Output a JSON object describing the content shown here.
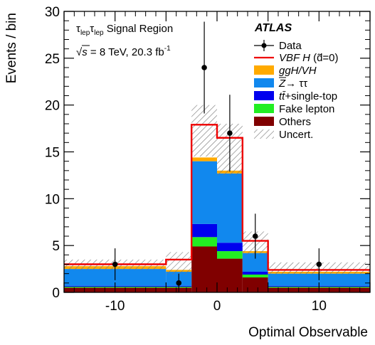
{
  "chart_data": {
    "type": "bar",
    "stacked": true,
    "xlabel": "Optimal Observable",
    "ylabel": "Events / bin",
    "xlim": [
      -15,
      15
    ],
    "ylim": [
      0,
      30
    ],
    "xticks": [
      -10,
      0,
      10
    ],
    "xtick_labels": [
      "-10",
      "0",
      "10"
    ],
    "yticks": [
      0,
      5,
      10,
      15,
      20,
      25,
      30
    ],
    "ytick_labels": [
      "0",
      "5",
      "10",
      "15",
      "20",
      "25",
      "30"
    ],
    "bin_edges": [
      -15,
      -5,
      -2.5,
      0,
      2.5,
      5,
      15
    ],
    "annotation": {
      "experiment": "ATLAS",
      "region_prefix": "τ",
      "region_sub1": "lep",
      "region_mid": "τ",
      "region_sub2": "lep",
      "region_suffix": " Signal Region",
      "energy_prefix": "√",
      "energy_s": "s",
      "energy_text": " = 8 TeV, 20.3 fb",
      "energy_sup": "-1"
    },
    "series": [
      {
        "name": "Others",
        "color": "#800000",
        "values": [
          0.5,
          0.5,
          4.9,
          3.6,
          1.6,
          0.5
        ]
      },
      {
        "name": "Fake lepton",
        "color": "#22ee22",
        "values": [
          0.1,
          0.1,
          1.0,
          0.8,
          0.3,
          0.1
        ]
      },
      {
        "name": "tt̄+single-top",
        "name_tt": "tt̄",
        "name_rest": "+single-top",
        "color": "#0000ee",
        "values": [
          0.1,
          0.1,
          1.4,
          0.9,
          0.3,
          0.1
        ]
      },
      {
        "name": "Z→ ττ",
        "name_z": "Z",
        "name_rest": "→ ττ",
        "color": "#1188ee",
        "values": [
          1.8,
          1.5,
          6.7,
          7.4,
          2.0,
          1.3
        ]
      },
      {
        "name": "ggH/VH",
        "color": "#ffaa00",
        "values": [
          0.3,
          0.2,
          0.4,
          0.3,
          0.2,
          0.2
        ]
      }
    ],
    "signal": {
      "name": "VBF H",
      "name_suffix": " (d̃=0)",
      "color": "#ee0000",
      "values": [
        3.0,
        3.5,
        17.9,
        16.5,
        5.5,
        2.4
      ]
    },
    "uncertainty": {
      "name": "Uncert.",
      "lower": [
        2.4,
        1.9,
        14.5,
        12.5,
        4.0,
        1.9
      ],
      "upper": [
        3.5,
        4.3,
        20.0,
        18.0,
        6.5,
        3.2
      ]
    },
    "data": {
      "name": "Data",
      "x": [
        -10,
        -3.75,
        -1.25,
        1.25,
        3.75,
        10
      ],
      "y": [
        3,
        1,
        24,
        17,
        6,
        3
      ],
      "err_low": [
        1.7,
        1.0,
        4.9,
        4.1,
        2.4,
        1.7
      ],
      "err_high": [
        1.7,
        1.0,
        4.9,
        4.1,
        2.4,
        1.7
      ]
    },
    "legend_position": "top-right"
  }
}
